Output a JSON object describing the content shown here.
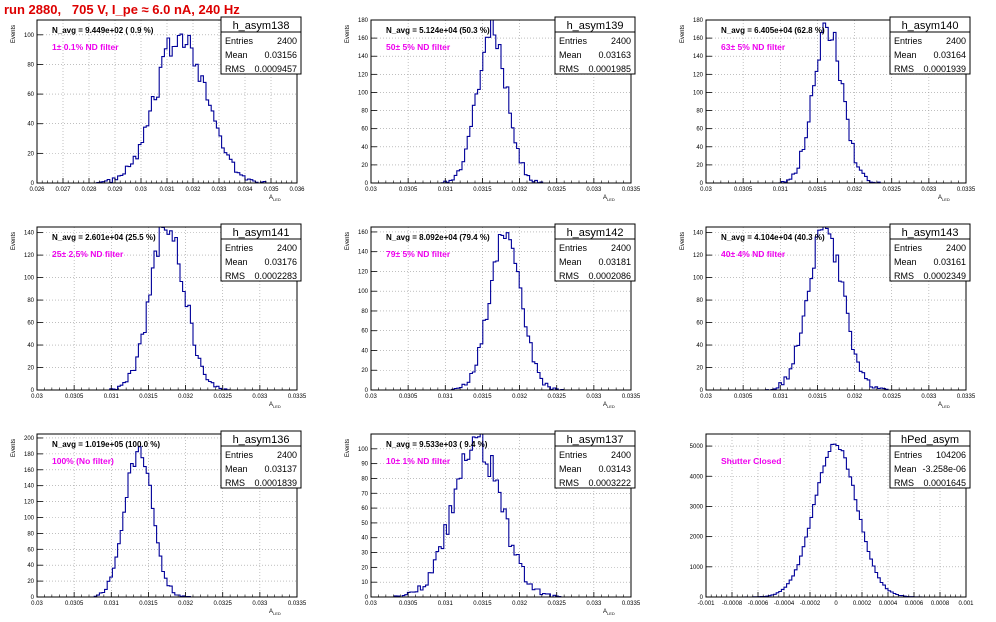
{
  "header": {
    "title": "run 2880,   705 V, I_pe ≈ 6.0 nA, 240 Hz"
  },
  "colors": {
    "histogram": "#000099",
    "filter_label": "#ee00ee",
    "title": "#dd0000",
    "grid": "#999999"
  },
  "chart_data": [
    {
      "type": "histogram",
      "name": "h_asym138",
      "ylabel": "Events",
      "xlabel": "A_{LED}",
      "n_avg": "N_avg = 9.449e+02 ( 0.9 %)",
      "filter_label": "1± 0.1% ND filter",
      "stats": {
        "Entries": "2400",
        "Mean": "0.03156",
        "RMS": "0.0009457"
      },
      "xlim": [
        0.026,
        0.036
      ],
      "ylim": [
        0,
        110
      ],
      "xticks": [
        0.026,
        0.027,
        0.028,
        0.029,
        0.03,
        0.031,
        0.032,
        0.033,
        0.034,
        0.035,
        0.036
      ],
      "xticklabels": [
        "0.026",
        "0.027",
        "0.028",
        "0.029",
        "0.03",
        "0.031",
        "0.032",
        "0.033",
        "0.034",
        "0.035",
        "0.036"
      ],
      "yticks": [
        0,
        20,
        40,
        60,
        80,
        100
      ],
      "yticklabels": [
        "0",
        "20",
        "40",
        "60",
        "80",
        "100"
      ],
      "grid": true,
      "bins": 100,
      "counts_summary": {
        "mean": 0.03156,
        "rms": 0.0009457,
        "entries": 2400
      }
    },
    {
      "type": "histogram",
      "name": "h_asym139",
      "ylabel": "Events",
      "xlabel": "A_{LED}",
      "n_avg": "N_avg = 5.124e+04 (50.3 %)",
      "filter_label": "50± 5% ND filter",
      "stats": {
        "Entries": "2400",
        "Mean": "0.03163",
        "RMS": "0.0001985"
      },
      "xlim": [
        0.03,
        0.0335
      ],
      "ylim": [
        0,
        180
      ],
      "xticks": [
        0.03,
        0.0305,
        0.031,
        0.0315,
        0.032,
        0.0325,
        0.033,
        0.0335
      ],
      "xticklabels": [
        "0.03",
        "0.0305",
        "0.031",
        "0.0315",
        "0.032",
        "0.0325",
        "0.033",
        "0.0335"
      ],
      "yticks": [
        0,
        20,
        40,
        60,
        80,
        100,
        120,
        140,
        160,
        180
      ],
      "yticklabels": [
        "0",
        "20",
        "40",
        "60",
        "80",
        "100",
        "120",
        "140",
        "160",
        "180"
      ],
      "grid": true,
      "bins": 100,
      "counts_summary": {
        "mean": 0.03163,
        "rms": 0.0001985,
        "entries": 2400
      }
    },
    {
      "type": "histogram",
      "name": "h_asym140",
      "ylabel": "Events",
      "xlabel": "A_{LED}",
      "n_avg": "N_avg = 6.405e+04 (62.8 %)",
      "filter_label": "63± 5% ND filter",
      "stats": {
        "Entries": "2400",
        "Mean": "0.03164",
        "RMS": "0.0001939"
      },
      "xlim": [
        0.03,
        0.0335
      ],
      "ylim": [
        0,
        180
      ],
      "xticks": [
        0.03,
        0.0305,
        0.031,
        0.0315,
        0.032,
        0.0325,
        0.033,
        0.0335
      ],
      "xticklabels": [
        "0.03",
        "0.0305",
        "0.031",
        "0.0315",
        "0.032",
        "0.0325",
        "0.033",
        "0.0335"
      ],
      "yticks": [
        0,
        20,
        40,
        60,
        80,
        100,
        120,
        140,
        160,
        180
      ],
      "yticklabels": [
        "0",
        "20",
        "40",
        "60",
        "80",
        "100",
        "120",
        "140",
        "160",
        "180"
      ],
      "grid": true,
      "bins": 100,
      "counts_summary": {
        "mean": 0.03164,
        "rms": 0.0001939,
        "entries": 2400
      }
    },
    {
      "type": "histogram",
      "name": "h_asym141",
      "ylabel": "Events",
      "xlabel": "A_{LED}",
      "n_avg": "N_avg = 2.601e+04 (25.5 %)",
      "filter_label": "25± 2.5% ND filter",
      "stats": {
        "Entries": "2400",
        "Mean": "0.03176",
        "RMS": "0.0002283"
      },
      "xlim": [
        0.03,
        0.0335
      ],
      "ylim": [
        0,
        145
      ],
      "xticks": [
        0.03,
        0.0305,
        0.031,
        0.0315,
        0.032,
        0.0325,
        0.033,
        0.0335
      ],
      "xticklabels": [
        "0.03",
        "0.0305",
        "0.031",
        "0.0315",
        "0.032",
        "0.0325",
        "0.033",
        "0.0335"
      ],
      "yticks": [
        0,
        20,
        40,
        60,
        80,
        100,
        120,
        140
      ],
      "yticklabels": [
        "0",
        "20",
        "40",
        "60",
        "80",
        "100",
        "120",
        "140"
      ],
      "grid": true,
      "bins": 100,
      "counts_summary": {
        "mean": 0.03176,
        "rms": 0.0002283,
        "entries": 2400
      }
    },
    {
      "type": "histogram",
      "name": "h_asym142",
      "ylabel": "Events",
      "xlabel": "A_{LED}",
      "n_avg": "N_avg = 8.092e+04 (79.4 %)",
      "filter_label": "79± 5% ND filter",
      "stats": {
        "Entries": "2400",
        "Mean": "0.03181",
        "RMS": "0.0002086"
      },
      "xlim": [
        0.03,
        0.0335
      ],
      "ylim": [
        0,
        165
      ],
      "xticks": [
        0.03,
        0.0305,
        0.031,
        0.0315,
        0.032,
        0.0325,
        0.033,
        0.0335
      ],
      "xticklabels": [
        "0.03",
        "0.0305",
        "0.031",
        "0.0315",
        "0.032",
        "0.0325",
        "0.033",
        "0.0335"
      ],
      "yticks": [
        0,
        20,
        40,
        60,
        80,
        100,
        120,
        140,
        160
      ],
      "yticklabels": [
        "0",
        "20",
        "40",
        "60",
        "80",
        "100",
        "120",
        "140",
        "160"
      ],
      "grid": true,
      "bins": 100,
      "counts_summary": {
        "mean": 0.03181,
        "rms": 0.0002086,
        "entries": 2400
      }
    },
    {
      "type": "histogram",
      "name": "h_asym143",
      "ylabel": "Events",
      "xlabel": "A_{LED}",
      "n_avg": "N_avg = 4.104e+04 (40.3 %)",
      "filter_label": "40± 4% ND filter",
      "stats": {
        "Entries": "2400",
        "Mean": "0.03161",
        "RMS": "0.0002349"
      },
      "xlim": [
        0.03,
        0.0335
      ],
      "ylim": [
        0,
        145
      ],
      "xticks": [
        0.03,
        0.0305,
        0.031,
        0.0315,
        0.032,
        0.0325,
        0.033,
        0.0335
      ],
      "xticklabels": [
        "0.03",
        "0.0305",
        "0.031",
        "0.0315",
        "0.032",
        "0.0325",
        "0.033",
        "0.0335"
      ],
      "yticks": [
        0,
        20,
        40,
        60,
        80,
        100,
        120,
        140
      ],
      "yticklabels": [
        "0",
        "20",
        "40",
        "60",
        "80",
        "100",
        "120",
        "140"
      ],
      "grid": true,
      "bins": 100,
      "counts_summary": {
        "mean": 0.03161,
        "rms": 0.0002349,
        "entries": 2400
      }
    },
    {
      "type": "histogram",
      "name": "h_asym136",
      "ylabel": "Events",
      "xlabel": "A_{LED}",
      "n_avg": "N_avg = 1.019e+05 (100.0 %)",
      "filter_label": "100% (No filter)",
      "stats": {
        "Entries": "2400",
        "Mean": "0.03137",
        "RMS": "0.0001839"
      },
      "xlim": [
        0.03,
        0.0335
      ],
      "ylim": [
        0,
        205
      ],
      "xticks": [
        0.03,
        0.0305,
        0.031,
        0.0315,
        0.032,
        0.0325,
        0.033,
        0.0335
      ],
      "xticklabels": [
        "0.03",
        "0.0305",
        "0.031",
        "0.0315",
        "0.032",
        "0.0325",
        "0.033",
        "0.0335"
      ],
      "yticks": [
        0,
        20,
        40,
        60,
        80,
        100,
        120,
        140,
        160,
        180,
        200
      ],
      "yticklabels": [
        "0",
        "20",
        "40",
        "60",
        "80",
        "100",
        "120",
        "140",
        "160",
        "180",
        "200"
      ],
      "grid": true,
      "bins": 100,
      "counts_summary": {
        "mean": 0.03137,
        "rms": 0.0001839,
        "entries": 2400
      }
    },
    {
      "type": "histogram",
      "name": "h_asym137",
      "ylabel": "Events",
      "xlabel": "A_{LED}",
      "n_avg": "N_avg = 9.533e+03 ( 9.4 %)",
      "filter_label": "10± 1% ND filter",
      "stats": {
        "Entries": "2400",
        "Mean": "0.03143",
        "RMS": "0.0003222"
      },
      "xlim": [
        0.03,
        0.0335
      ],
      "ylim": [
        0,
        110
      ],
      "xticks": [
        0.03,
        0.0305,
        0.031,
        0.0315,
        0.032,
        0.0325,
        0.033,
        0.0335
      ],
      "xticklabels": [
        "0.03",
        "0.0305",
        "0.031",
        "0.0315",
        "0.032",
        "0.0325",
        "0.033",
        "0.0335"
      ],
      "yticks": [
        0,
        10,
        20,
        30,
        40,
        50,
        60,
        70,
        80,
        90,
        100
      ],
      "yticklabels": [
        "0",
        "10",
        "20",
        "30",
        "40",
        "50",
        "60",
        "70",
        "80",
        "90",
        "100"
      ],
      "grid": true,
      "bins": 100,
      "counts_summary": {
        "mean": 0.03143,
        "rms": 0.0003222,
        "entries": 2400
      }
    },
    {
      "type": "histogram",
      "name": "hPed_asym",
      "ylabel": "",
      "xlabel": "",
      "n_avg": "",
      "filter_label": "Shutter Closed",
      "stats": {
        "Entries": "104206",
        "Mean": "-3.258e-06",
        "RMS": "0.0001645"
      },
      "xlim": [
        -0.001,
        0.001
      ],
      "ylim": [
        0,
        5400
      ],
      "xticks": [
        -0.001,
        -0.0008,
        -0.0006,
        -0.0004,
        -0.0002,
        0,
        0.0002,
        0.0004,
        0.0006,
        0.0008,
        0.001
      ],
      "xticklabels": [
        "-0.001",
        "-0.0008",
        "-0.0006",
        "-0.0004",
        "-0.0002",
        "0",
        "0.0002",
        "0.0004",
        "0.0006",
        "0.0008",
        "0.001"
      ],
      "yticks": [
        0,
        1000,
        2000,
        3000,
        4000,
        5000
      ],
      "yticklabels": [
        "0",
        "1000",
        "2000",
        "3000",
        "4000",
        "5000"
      ],
      "grid": true,
      "bins": 100,
      "counts_summary": {
        "mean": -3.258e-06,
        "rms": 0.0001645,
        "entries": 104206
      }
    }
  ]
}
